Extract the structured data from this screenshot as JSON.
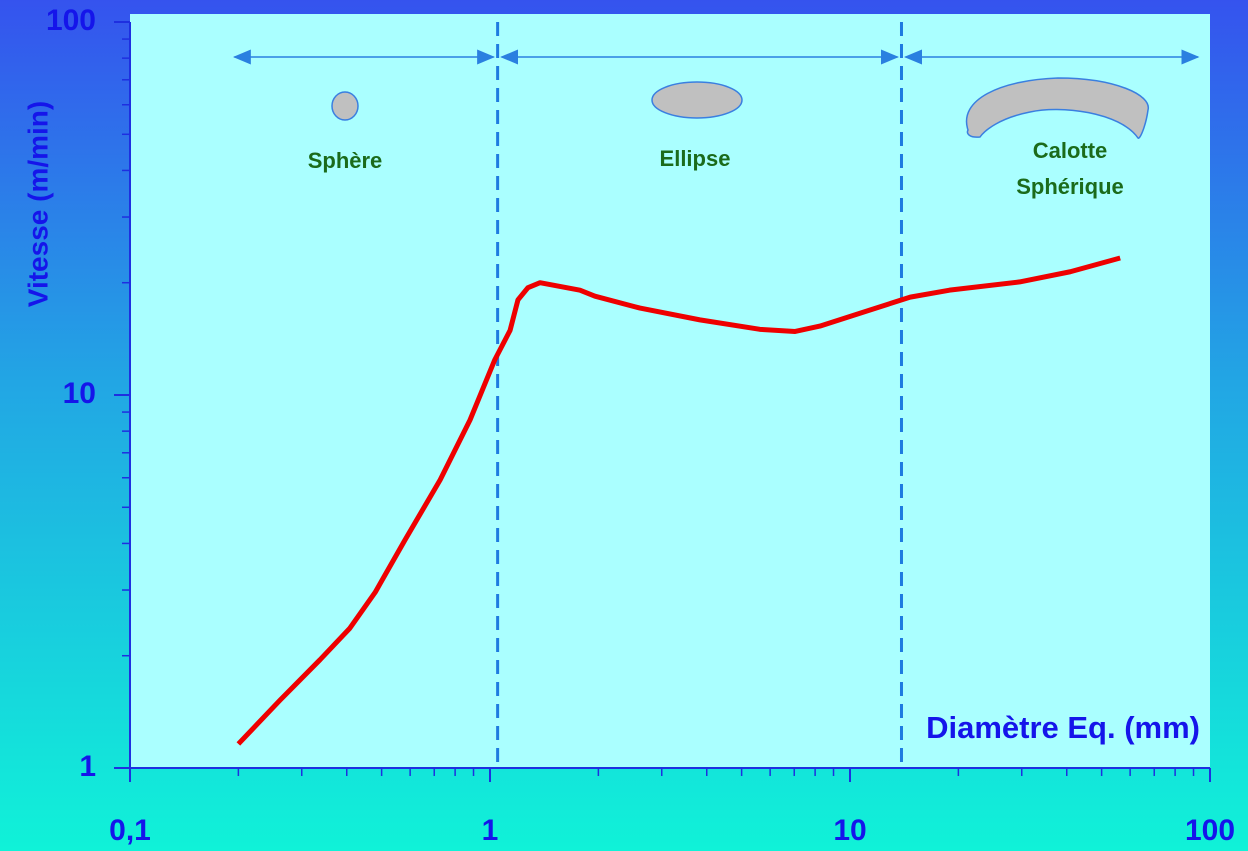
{
  "chart_data": {
    "type": "line",
    "ylabel": "Vitesse (m/min)",
    "xlabel": "Diamètre Eq.  (mm)",
    "x": [
      0.2,
      0.261,
      0.337,
      0.408,
      0.48,
      0.58,
      0.727,
      0.88,
      1.03,
      1.137,
      1.196,
      1.275,
      1.377,
      1.778,
      1.957,
      2.61,
      3.83,
      5.62,
      7.04,
      8.25,
      11.37,
      14.7,
      18.9,
      29.6,
      40.9,
      56.3
    ],
    "values": [
      1.16,
      1.52,
      1.95,
      2.37,
      2.96,
      4.08,
      5.92,
      8.57,
      12.4,
      14.9,
      18,
      19.4,
      20,
      19.1,
      18.4,
      17.1,
      15.9,
      15.0,
      14.8,
      15.3,
      16.9,
      18.3,
      19.1,
      20.1,
      21.4,
      23.3
    ],
    "color": "#ee0000",
    "xscale": "log",
    "yscale": "log",
    "xlim": [
      0.1,
      100
    ],
    "ylim": [
      1,
      100
    ],
    "xticks": [
      {
        "value": 0.1,
        "label": "0,1"
      },
      1,
      10,
      100
    ],
    "yticks": [
      1,
      10,
      100
    ],
    "regions": [
      {
        "label": [
          "Sphère"
        ],
        "from": 0.19,
        "to": 1.05
      },
      {
        "label": [
          "Ellipse"
        ],
        "from": 1.05,
        "to": 13.9
      },
      {
        "label": [
          "Calotte",
          "Sphérique"
        ],
        "from": 13.9,
        "to": 95
      }
    ]
  }
}
